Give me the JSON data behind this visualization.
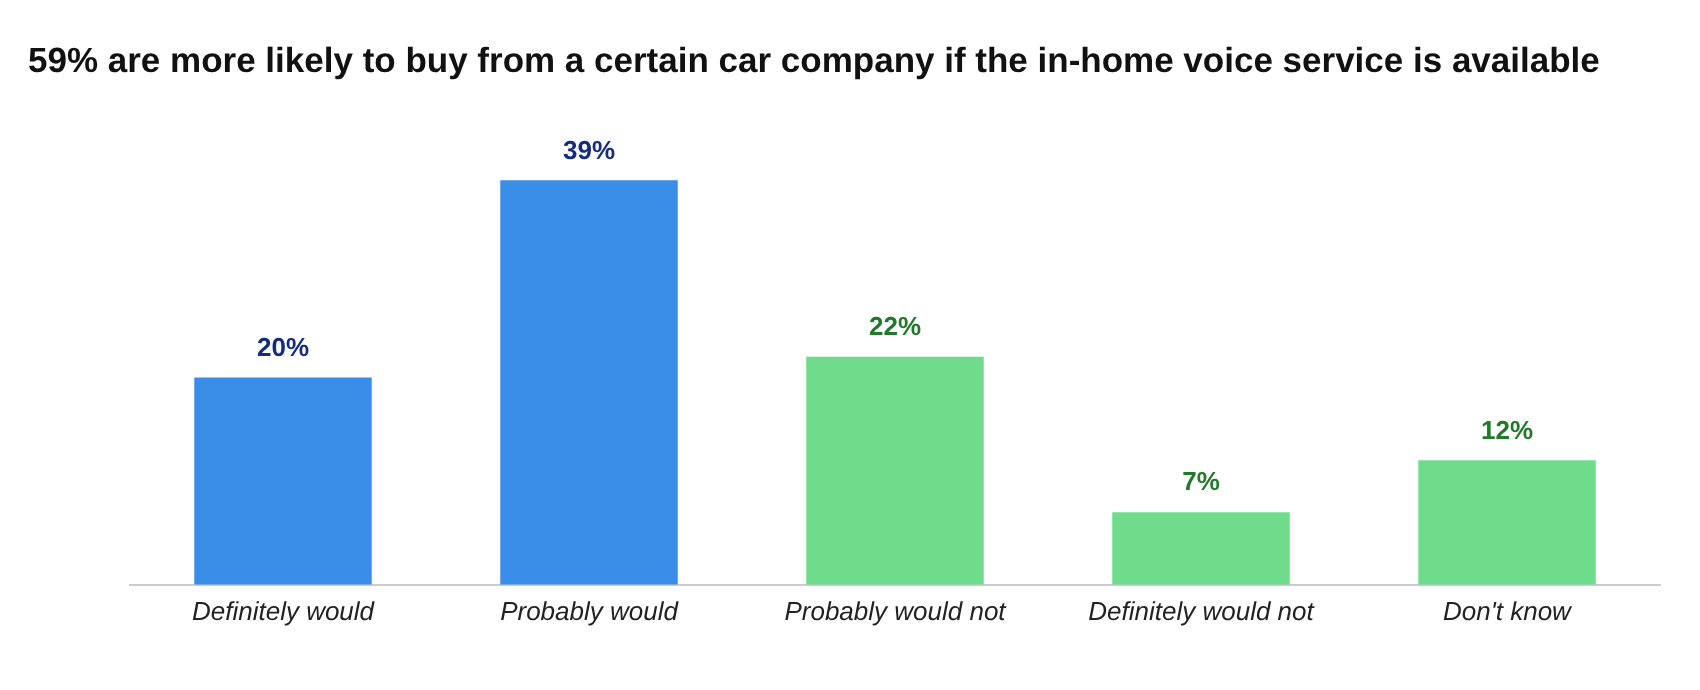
{
  "chart_data": {
    "type": "bar",
    "title": "59% are more likely to buy from a certain car company if the in-home voice service is available",
    "categories": [
      "Definitely would",
      "Probably would",
      "Probably would not",
      "Definitely would not",
      "Don't know"
    ],
    "values": [
      20,
      39,
      22,
      7,
      12
    ],
    "colors": [
      "#3a8ee8",
      "#3a8ee8",
      "#6fdc8c",
      "#6fdc8c",
      "#6fdc8c"
    ],
    "value_labels": [
      "20%",
      "39%",
      "22%",
      "7%",
      "12%"
    ],
    "grid": false,
    "legend": false
  }
}
